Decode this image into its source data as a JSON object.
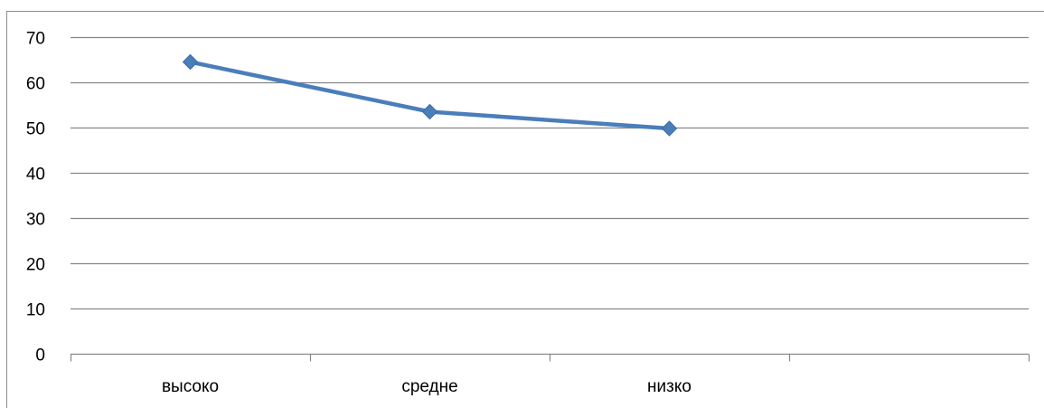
{
  "chart_data": {
    "type": "line",
    "categories": [
      "высоко",
      "средне",
      "низко",
      ""
    ],
    "series": [
      {
        "values": [
          64.5,
          53.5,
          49.8,
          null
        ],
        "color": "#4a7ebb"
      }
    ],
    "ylim": [
      0,
      70
    ],
    "yticks": [
      "0",
      "10",
      "20",
      "30",
      "40",
      "50",
      "60",
      "70"
    ],
    "grid": true,
    "legend": "none",
    "marker": "diamond",
    "gridline_color": "#868686",
    "axis_color": "#868686"
  }
}
